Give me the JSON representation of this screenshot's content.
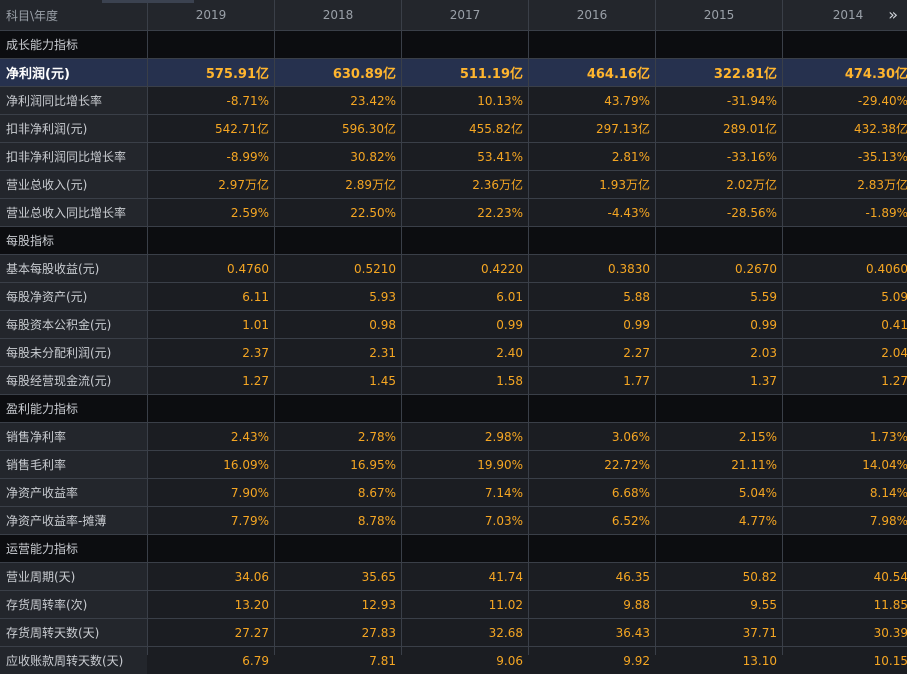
{
  "header": {
    "corner_label": "科目\\年度",
    "years": [
      "2019",
      "2018",
      "2017",
      "2016",
      "2015",
      "2014"
    ]
  },
  "more_icon": "double-chevron-right-icon",
  "sections": [
    {
      "title": "成长能力指标",
      "rows": [
        {
          "label": "净利润(元)",
          "values": [
            "575.91亿",
            "630.89亿",
            "511.19亿",
            "464.16亿",
            "322.81亿",
            "474.30亿"
          ],
          "highlight": true
        },
        {
          "label": "净利润同比增长率",
          "values": [
            "-8.71%",
            "23.42%",
            "10.13%",
            "43.79%",
            "-31.94%",
            "-29.40%"
          ]
        },
        {
          "label": "扣非净利润(元)",
          "values": [
            "542.71亿",
            "596.30亿",
            "455.82亿",
            "297.13亿",
            "289.01亿",
            "432.38亿"
          ]
        },
        {
          "label": "扣非净利润同比增长率",
          "values": [
            "-8.99%",
            "30.82%",
            "53.41%",
            "2.81%",
            "-33.16%",
            "-35.13%"
          ]
        },
        {
          "label": "营业总收入(元)",
          "values": [
            "2.97万亿",
            "2.89万亿",
            "2.36万亿",
            "1.93万亿",
            "2.02万亿",
            "2.83万亿"
          ]
        },
        {
          "label": "营业总收入同比增长率",
          "values": [
            "2.59%",
            "22.50%",
            "22.23%",
            "-4.43%",
            "-28.56%",
            "-1.89%"
          ]
        }
      ]
    },
    {
      "title": "每股指标",
      "rows": [
        {
          "label": "基本每股收益(元)",
          "values": [
            "0.4760",
            "0.5210",
            "0.4220",
            "0.3830",
            "0.2670",
            "0.4060"
          ]
        },
        {
          "label": "每股净资产(元)",
          "values": [
            "6.11",
            "5.93",
            "6.01",
            "5.88",
            "5.59",
            "5.09"
          ]
        },
        {
          "label": "每股资本公积金(元)",
          "values": [
            "1.01",
            "0.98",
            "0.99",
            "0.99",
            "0.99",
            "0.41"
          ]
        },
        {
          "label": "每股未分配利润(元)",
          "values": [
            "2.37",
            "2.31",
            "2.40",
            "2.27",
            "2.03",
            "2.04"
          ]
        },
        {
          "label": "每股经营现金流(元)",
          "values": [
            "1.27",
            "1.45",
            "1.58",
            "1.77",
            "1.37",
            "1.27"
          ]
        }
      ]
    },
    {
      "title": "盈利能力指标",
      "rows": [
        {
          "label": "销售净利率",
          "values": [
            "2.43%",
            "2.78%",
            "2.98%",
            "3.06%",
            "2.15%",
            "1.73%"
          ]
        },
        {
          "label": "销售毛利率",
          "values": [
            "16.09%",
            "16.95%",
            "19.90%",
            "22.72%",
            "21.11%",
            "14.04%"
          ]
        },
        {
          "label": "净资产收益率",
          "values": [
            "7.90%",
            "8.67%",
            "7.14%",
            "6.68%",
            "5.04%",
            "8.14%"
          ]
        },
        {
          "label": "净资产收益率-摊薄",
          "values": [
            "7.79%",
            "8.78%",
            "7.03%",
            "6.52%",
            "4.77%",
            "7.98%"
          ]
        }
      ]
    },
    {
      "title": "运营能力指标",
      "rows": [
        {
          "label": "营业周期(天)",
          "values": [
            "34.06",
            "35.65",
            "41.74",
            "46.35",
            "50.82",
            "40.54"
          ]
        },
        {
          "label": "存货周转率(次)",
          "values": [
            "13.20",
            "12.93",
            "11.02",
            "9.88",
            "9.55",
            "11.85"
          ]
        },
        {
          "label": "存货周转天数(天)",
          "values": [
            "27.27",
            "27.83",
            "32.68",
            "36.43",
            "37.71",
            "30.39"
          ]
        },
        {
          "label": "应收账款周转天数(天)",
          "values": [
            "6.79",
            "7.81",
            "9.06",
            "9.92",
            "13.10",
            "10.15"
          ]
        }
      ]
    }
  ]
}
